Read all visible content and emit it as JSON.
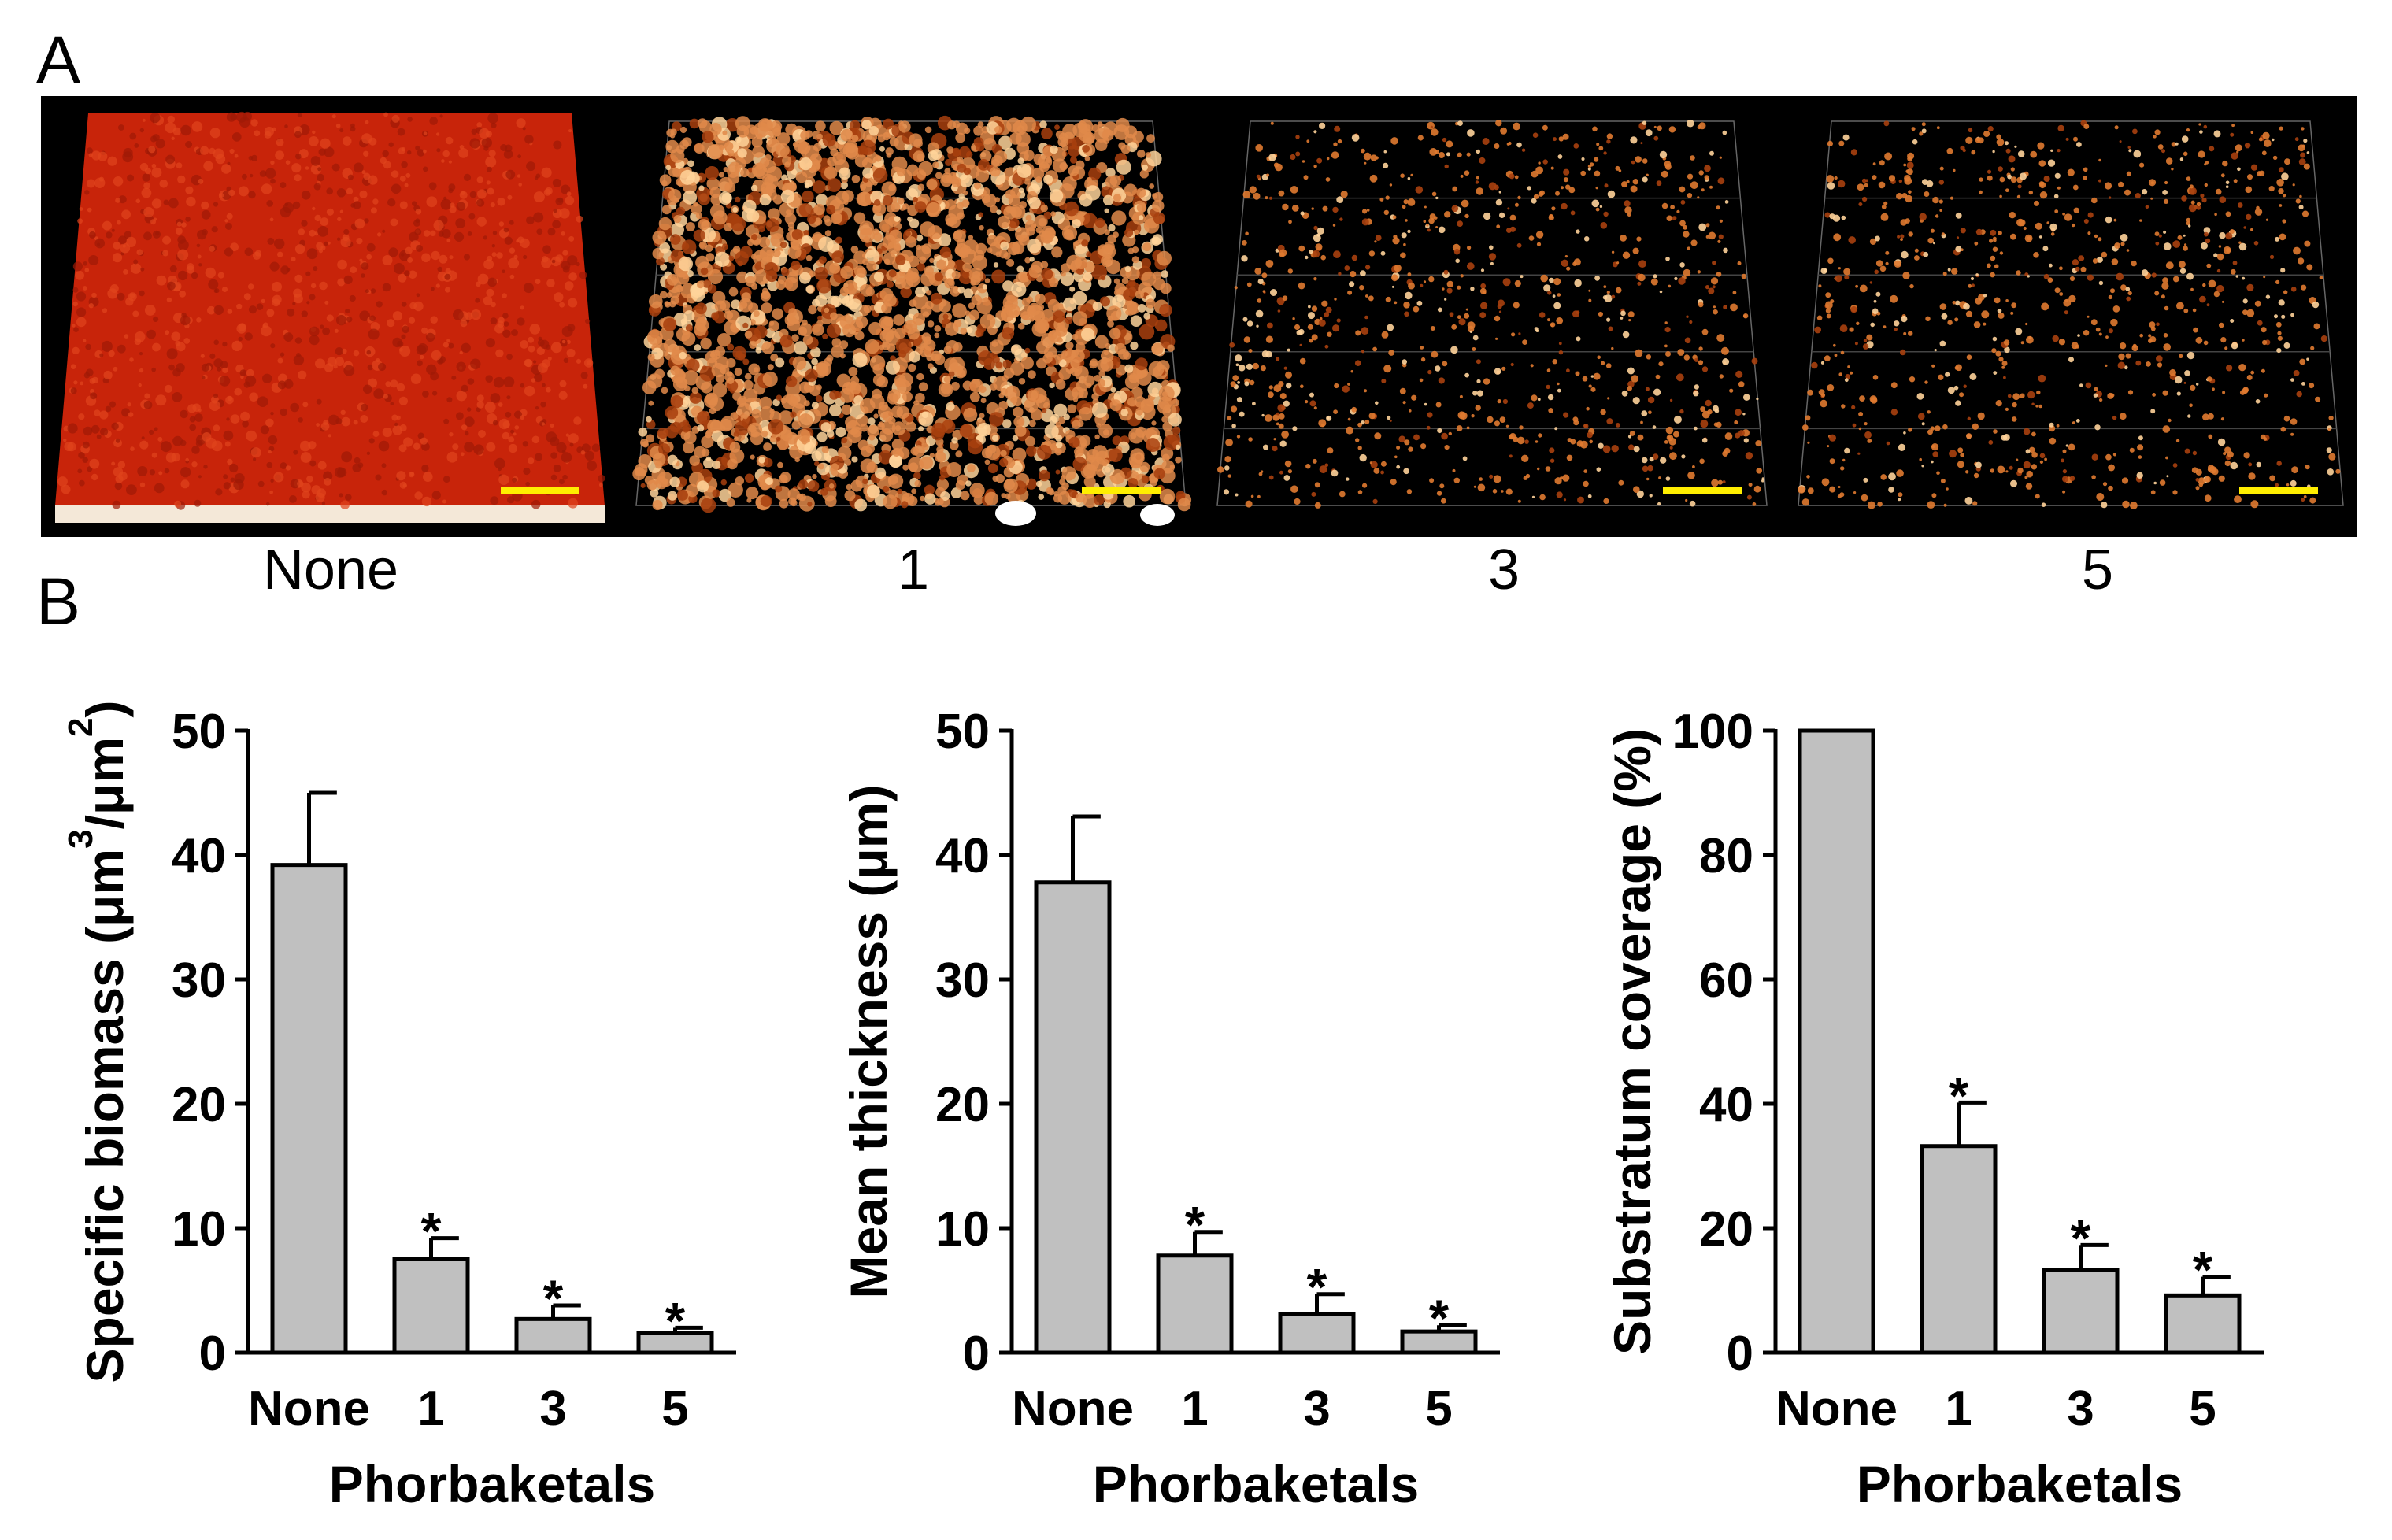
{
  "panels": {
    "a_label": "A",
    "b_label": "B"
  },
  "micrographs": [
    {
      "label": "None",
      "density": "confluent",
      "tint": "#c8240a"
    },
    {
      "label": "1",
      "density": "dense",
      "tint": "#e08a4a"
    },
    {
      "label": "3",
      "density": "sparse",
      "tint": "#e07a30"
    },
    {
      "label": "5",
      "density": "sparse",
      "tint": "#e07a30"
    }
  ],
  "colors": {
    "bar_fill": "#c0c0c0",
    "scale_bar": "#ffee00"
  },
  "chart_data": [
    {
      "type": "bar",
      "categories": [
        "None",
        "1",
        "3",
        "5"
      ],
      "values": [
        39.2,
        7.5,
        2.7,
        1.6
      ],
      "errors": [
        5.8,
        1.7,
        1.1,
        0.4
      ],
      "significance": [
        "",
        "*",
        "*",
        "*"
      ],
      "ylabel_main": "Specific biomass (",
      "ylabel_unit": "μm",
      "ylabel_sup1": "3",
      "ylabel_mid": "/",
      "ylabel_unit2": "μm",
      "ylabel_sup2": "2",
      "ylabel_end": ")",
      "xlabel": "Phorbaketals",
      "ylim": [
        0,
        50
      ],
      "yticks": [
        0,
        10,
        20,
        30,
        40,
        50
      ]
    },
    {
      "type": "bar",
      "categories": [
        "None",
        "1",
        "3",
        "5"
      ],
      "values": [
        37.8,
        7.8,
        3.1,
        1.7
      ],
      "errors": [
        5.3,
        1.9,
        1.6,
        0.5
      ],
      "significance": [
        "",
        "*",
        "*",
        "*"
      ],
      "ylabel": "Mean thickness (μm)",
      "xlabel": "Phorbaketals",
      "ylim": [
        0,
        50
      ],
      "yticks": [
        0,
        10,
        20,
        30,
        40,
        50
      ]
    },
    {
      "type": "bar",
      "categories": [
        "None",
        "1",
        "3",
        "5"
      ],
      "values": [
        100,
        33.2,
        13.3,
        9.2
      ],
      "errors": [
        0,
        7,
        4,
        3
      ],
      "significance": [
        "",
        "*",
        "*",
        "*"
      ],
      "ylabel": "Substratum coverage (%)",
      "xlabel": "Phorbaketals",
      "ylim": [
        0,
        100
      ],
      "yticks": [
        0,
        20,
        40,
        60,
        80,
        100
      ]
    }
  ]
}
